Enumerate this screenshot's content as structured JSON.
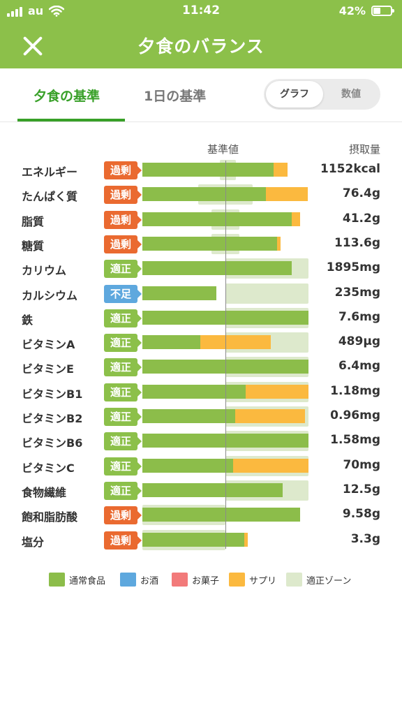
{
  "status": {
    "carrier": "au",
    "time": "11:42",
    "battery": "42%"
  },
  "nav": {
    "title": "夕食のバランス"
  },
  "tabs": [
    {
      "label": "夕食の基準"
    },
    {
      "label": "1日の基準"
    }
  ],
  "toggle": {
    "graph": "グラフ",
    "value": "数値"
  },
  "headers": {
    "standard": "基準値",
    "intake": "摂取量"
  },
  "rows": [
    {
      "label": "エネルギー",
      "status": "過剰",
      "value": "1152kcal"
    },
    {
      "label": "たんぱく質",
      "status": "過剰",
      "value": "76.4g"
    },
    {
      "label": "脂質",
      "status": "過剰",
      "value": "41.2g"
    },
    {
      "label": "糖質",
      "status": "過剰",
      "value": "113.6g"
    },
    {
      "label": "カリウム",
      "status": "適正",
      "value": "1895mg"
    },
    {
      "label": "カルシウム",
      "status": "不足",
      "value": "235mg"
    },
    {
      "label": "鉄",
      "status": "適正",
      "value": "7.6mg"
    },
    {
      "label": "ビタミンA",
      "status": "適正",
      "value": "489μg"
    },
    {
      "label": "ビタミンE",
      "status": "適正",
      "value": "6.4mg"
    },
    {
      "label": "ビタミンB1",
      "status": "適正",
      "value": "1.18mg"
    },
    {
      "label": "ビタミンB2",
      "status": "適正",
      "value": "0.96mg"
    },
    {
      "label": "ビタミンB6",
      "status": "適正",
      "value": "1.58mg"
    },
    {
      "label": "ビタミンC",
      "status": "適正",
      "value": "70mg"
    },
    {
      "label": "食物繊維",
      "status": "適正",
      "value": "12.5g"
    },
    {
      "label": "飽和脂肪酸",
      "status": "過剰",
      "value": "9.58g"
    },
    {
      "label": "塩分",
      "status": "過剰",
      "value": "3.3g"
    }
  ],
  "chart_data": {
    "type": "bar",
    "stacked": true,
    "orientation": "horizontal",
    "value_unit": "percent of 基準値",
    "categories": [
      "エネルギー",
      "たんぱく質",
      "脂質",
      "糖質",
      "カリウム",
      "カルシウム",
      "鉄",
      "ビタミンA",
      "ビタミンE",
      "ビタミンB1",
      "ビタミンB2",
      "ビタミンB6",
      "ビタミンC",
      "食物繊維",
      "飽和脂肪酸",
      "塩分"
    ],
    "xlim": [
      0,
      200
    ],
    "series": [
      {
        "name": "通常食品",
        "values": [
          158,
          149,
          180,
          162,
          180,
          89,
          200,
          70,
          200,
          124,
          112,
          200,
          109,
          169,
          190,
          123
        ]
      },
      {
        "name": "お酒",
        "values": [
          0,
          0,
          0,
          0,
          0,
          0,
          0,
          0,
          0,
          0,
          0,
          0,
          0,
          0,
          0,
          0
        ]
      },
      {
        "name": "お菓子",
        "values": [
          0,
          0,
          0,
          0,
          0,
          0,
          0,
          0,
          0,
          0,
          0,
          0,
          0,
          0,
          0,
          0
        ]
      },
      {
        "name": "サプリ",
        "values": [
          17,
          50,
          10,
          4,
          0,
          0,
          0,
          85,
          0,
          76,
          84,
          0,
          91,
          0,
          0,
          4
        ]
      }
    ],
    "zones": [
      {
        "name": "適正ゾーン",
        "ranges": [
          [
            93,
            113
          ],
          [
            67,
            133
          ],
          [
            83,
            117
          ],
          [
            83,
            117
          ],
          [
            100,
            200
          ],
          [
            100,
            200
          ],
          [
            100,
            200
          ],
          [
            100,
            200
          ],
          [
            100,
            200
          ],
          [
            100,
            200
          ],
          [
            100,
            200
          ],
          [
            100,
            200
          ],
          [
            100,
            200
          ],
          [
            100,
            200
          ],
          [
            0,
            100
          ],
          [
            0,
            100
          ]
        ]
      }
    ],
    "legend": [
      "通常食品",
      "お酒",
      "お菓子",
      "サプリ",
      "適正ゾーン"
    ],
    "colors": {
      "通常食品": "#8cbd4a",
      "お酒": "#5ea8de",
      "お菓子": "#f27a7a",
      "サプリ": "#fbb93f",
      "適正ゾーン": "#dde9cc"
    },
    "status_colors": {
      "過剰": "#ea6a30",
      "適正": "#8cc04a",
      "不足": "#5ea8de"
    },
    "legend_position": "bottom"
  }
}
